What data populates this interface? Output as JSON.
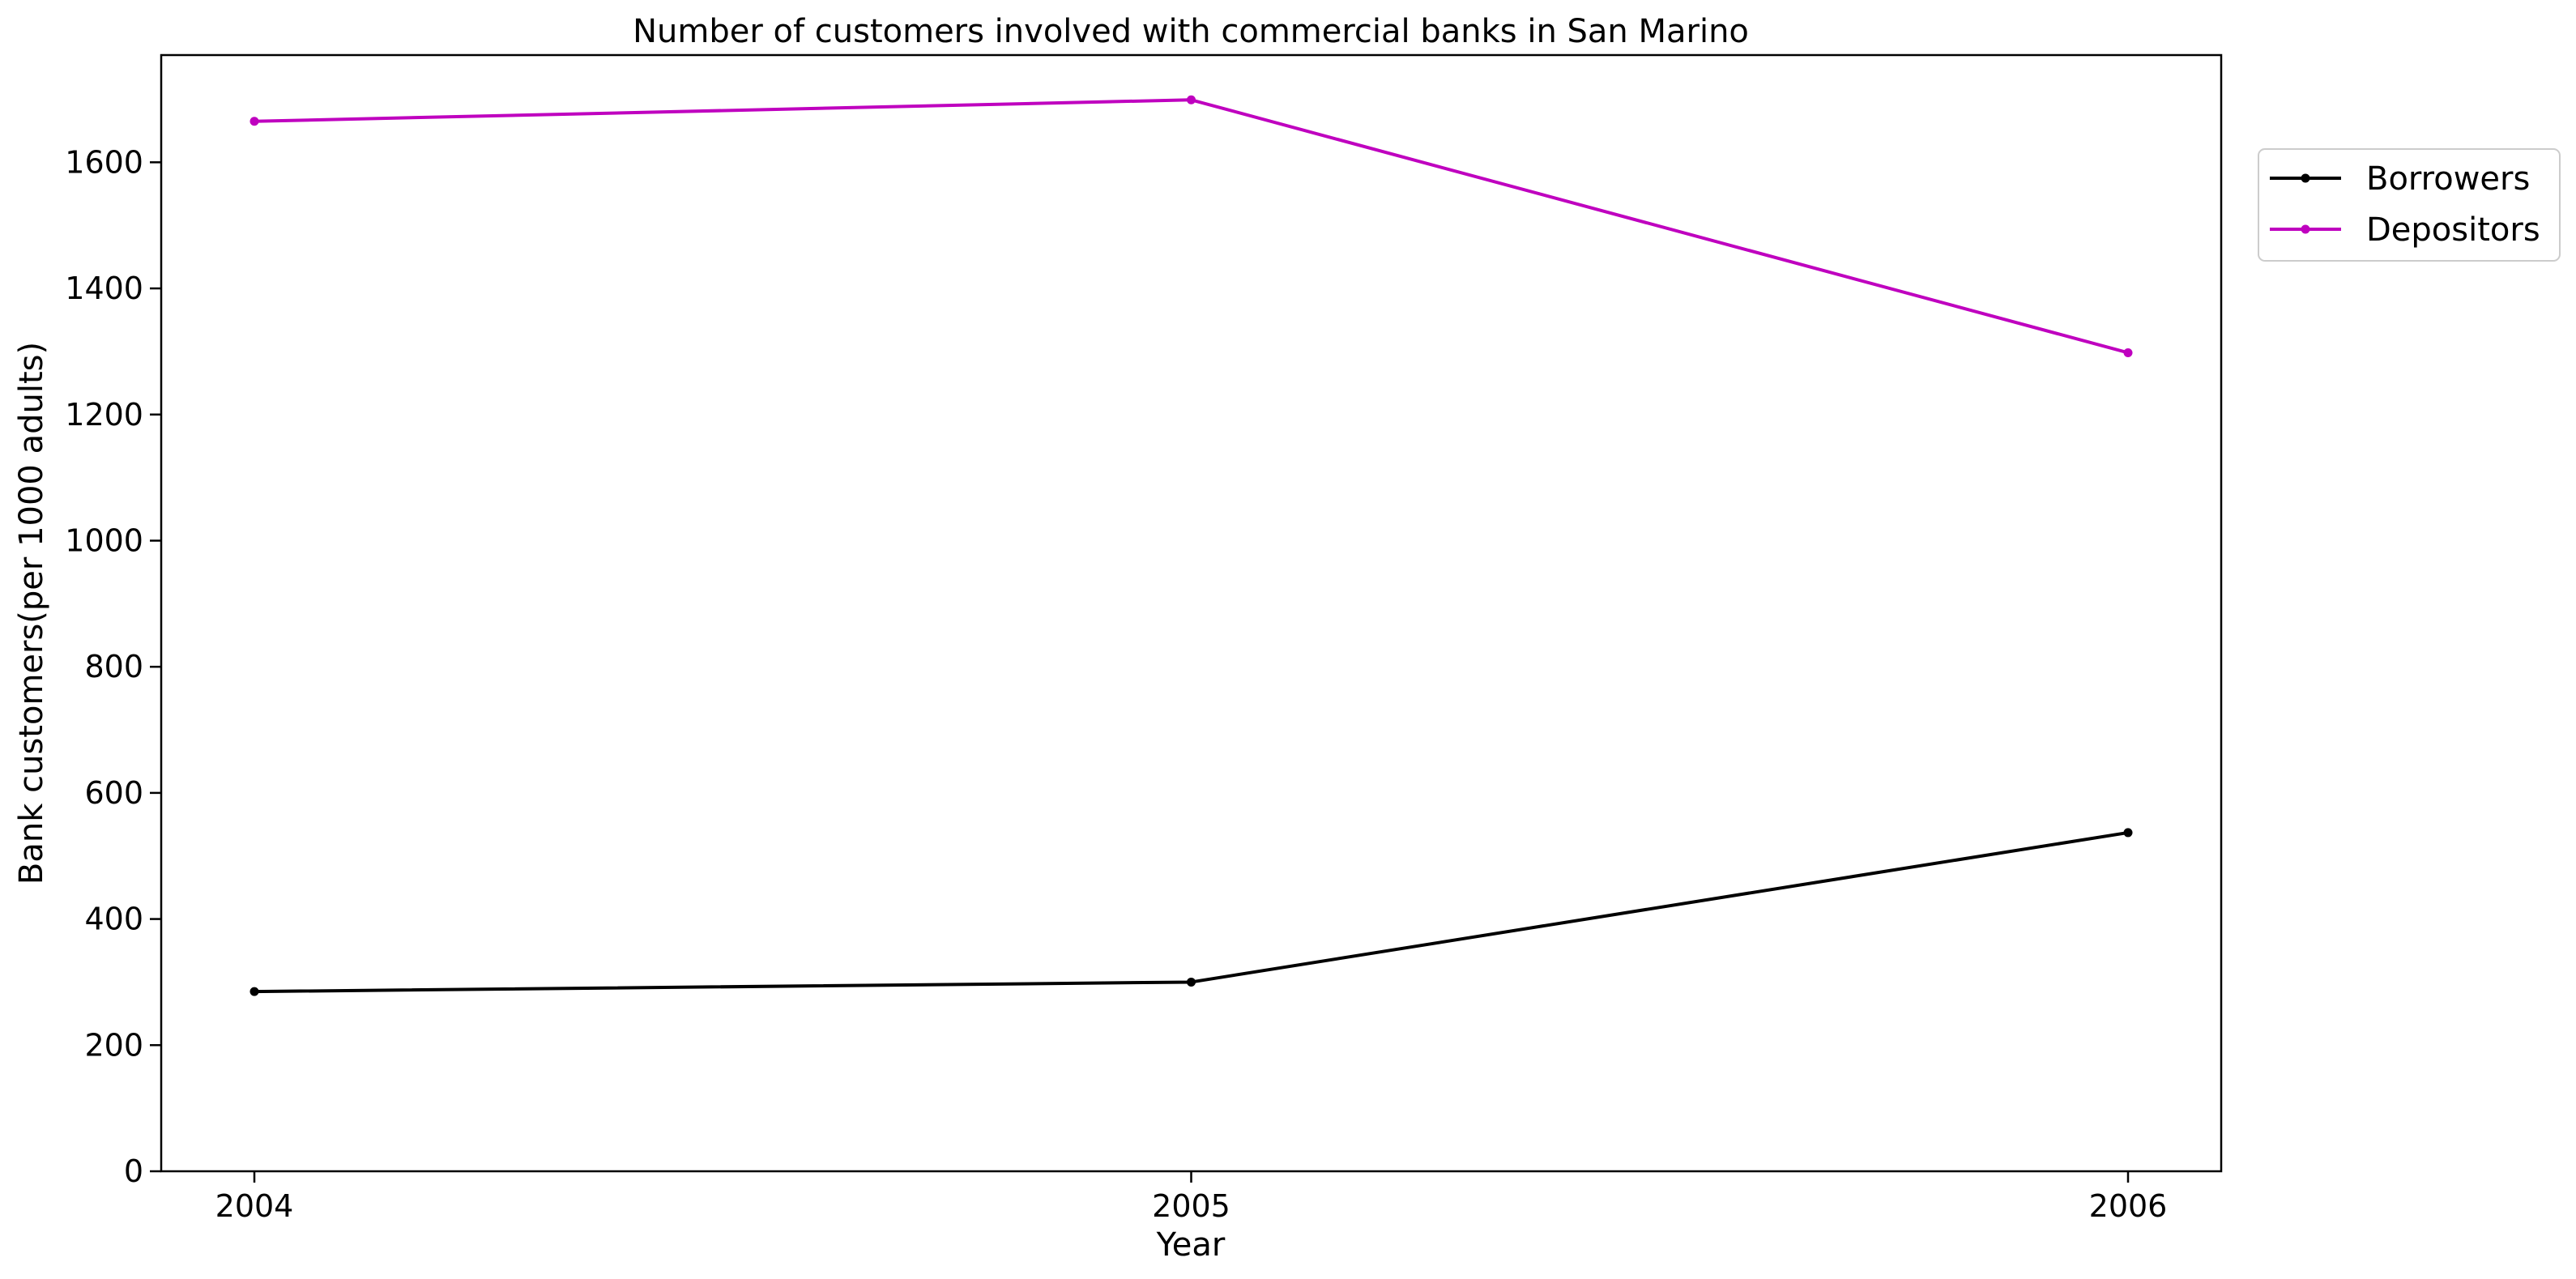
{
  "chart_data": {
    "type": "line",
    "title": "Number of customers involved with commercial banks in San Marino",
    "xlabel": "Year",
    "ylabel": "Bank customers(per 1000 adults)",
    "x": [
      "2004",
      "2005",
      "2006"
    ],
    "ylim": [
      0,
      1770
    ],
    "yticks": [
      0,
      200,
      400,
      600,
      800,
      1000,
      1200,
      1400,
      1600
    ],
    "grid": false,
    "legend_position": "outside-top-right",
    "series": [
      {
        "name": "Borrowers",
        "color": "#000000",
        "values": [
          285,
          300,
          537
        ]
      },
      {
        "name": "Depositors",
        "color": "#bf00bf",
        "values": [
          1665,
          1699,
          1298
        ]
      }
    ]
  }
}
